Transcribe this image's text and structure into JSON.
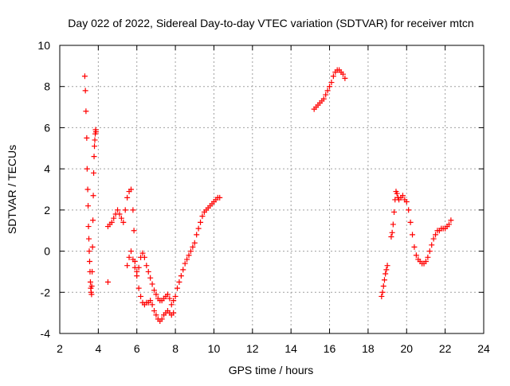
{
  "chart_data": {
    "type": "scatter",
    "title": "Day 022 of 2022, Sidereal Day-to-day VTEC variation (SDTVAR) for receiver mtcn",
    "xlabel": "GPS time / hours",
    "ylabel": "SDTVAR / TECUs",
    "xlim": [
      2,
      24
    ],
    "ylim": [
      -4,
      10
    ],
    "x_ticks": [
      2,
      4,
      6,
      8,
      10,
      12,
      14,
      16,
      18,
      20,
      22,
      24
    ],
    "y_ticks": [
      -4,
      -2,
      0,
      2,
      4,
      6,
      8,
      10
    ],
    "grid": true,
    "marker": "plus",
    "color": "#ff0000",
    "segments": [
      {
        "name": "seg1",
        "x": [
          3.3,
          3.33,
          3.36,
          3.4,
          3.42,
          3.45,
          3.47,
          3.49,
          3.51,
          3.53,
          3.55,
          3.57,
          3.59,
          3.61,
          3.63,
          3.65
        ],
        "y": [
          8.5,
          7.8,
          6.8,
          5.5,
          4.0,
          3.0,
          2.2,
          1.2,
          0.6,
          0.0,
          -0.5,
          -1.0,
          -1.5,
          -1.8,
          -2.0,
          -2.1
        ]
      },
      {
        "name": "seg2",
        "x": [
          3.66,
          3.68,
          3.7,
          3.72,
          3.74,
          3.76,
          3.78,
          3.8,
          3.82,
          3.84,
          3.86,
          3.88
        ],
        "y": [
          -1.7,
          -1.0,
          0.2,
          1.5,
          2.7,
          3.8,
          4.6,
          5.1,
          5.4,
          5.7,
          5.9,
          5.8
        ]
      },
      {
        "name": "seg3",
        "x": [
          4.5,
          4.6,
          4.7,
          4.8,
          4.9,
          5.0,
          5.1,
          5.2,
          5.3,
          5.4,
          5.5,
          5.6,
          5.7,
          5.8,
          5.85
        ],
        "y": [
          1.2,
          1.3,
          1.4,
          1.6,
          1.8,
          2.0,
          1.8,
          1.6,
          1.4,
          2.0,
          2.6,
          2.9,
          3.0,
          2.0,
          1.0
        ]
      },
      {
        "name": "seg4",
        "x": [
          5.5,
          5.6,
          5.7,
          5.8,
          5.9,
          6.0,
          6.1,
          6.2,
          6.3,
          6.4,
          6.5,
          6.6,
          6.7,
          6.8,
          6.9,
          7.0,
          7.1,
          7.2,
          7.3,
          7.4,
          7.5,
          7.6,
          7.7,
          7.8,
          7.9,
          8.0,
          8.1,
          8.2,
          8.3,
          8.4,
          8.5,
          8.6,
          8.7,
          8.8,
          8.9,
          9.0,
          9.1,
          9.2,
          9.3,
          9.4,
          9.5,
          9.6,
          9.7,
          9.8,
          9.9,
          10.0,
          10.1,
          10.2,
          10.3
        ],
        "y": [
          -0.7,
          -0.3,
          0.0,
          -0.4,
          -0.8,
          -1.0,
          -0.8,
          -0.3,
          -0.1,
          -0.3,
          -0.7,
          -1.0,
          -1.3,
          -1.6,
          -1.9,
          -2.1,
          -2.3,
          -2.4,
          -2.4,
          -2.3,
          -2.2,
          -2.1,
          -2.3,
          -2.6,
          -2.4,
          -2.2,
          -1.8,
          -1.5,
          -1.2,
          -0.9,
          -0.6,
          -0.4,
          -0.2,
          0.0,
          0.2,
          0.4,
          0.8,
          1.1,
          1.4,
          1.7,
          1.9,
          2.0,
          2.1,
          2.2,
          2.3,
          2.4,
          2.5,
          2.6,
          2.6
        ]
      },
      {
        "name": "seg5",
        "x": [
          5.9,
          6.0,
          6.1,
          6.2,
          6.3,
          6.4,
          6.5,
          6.6,
          6.7,
          6.8,
          6.9,
          7.0,
          7.1,
          7.2,
          7.3,
          7.4,
          7.5,
          7.6,
          7.7,
          7.8,
          7.9
        ],
        "y": [
          -0.5,
          -1.2,
          -1.8,
          -2.2,
          -2.5,
          -2.6,
          -2.5,
          -2.5,
          -2.4,
          -2.6,
          -2.9,
          -3.1,
          -3.3,
          -3.4,
          -3.3,
          -3.1,
          -3.0,
          -2.9,
          -3.0,
          -3.1,
          -3.0
        ]
      },
      {
        "name": "seg6",
        "x": [
          15.2,
          15.3,
          15.4,
          15.5,
          15.6,
          15.7,
          15.8,
          15.9,
          16.0,
          16.1,
          16.2,
          16.3,
          16.4,
          16.5,
          16.6,
          16.7,
          16.8
        ],
        "y": [
          6.9,
          7.0,
          7.1,
          7.2,
          7.3,
          7.4,
          7.6,
          7.8,
          8.0,
          8.2,
          8.5,
          8.7,
          8.8,
          8.8,
          8.7,
          8.6,
          8.4
        ]
      },
      {
        "name": "seg7",
        "x": [
          18.7,
          18.75,
          18.8,
          18.85,
          18.9,
          18.95,
          19.0
        ],
        "y": [
          -2.2,
          -2.0,
          -1.7,
          -1.4,
          -1.1,
          -0.9,
          -0.7
        ]
      },
      {
        "name": "seg8",
        "x": [
          19.2,
          19.25,
          19.3,
          19.35,
          19.4,
          19.45,
          19.5,
          19.55,
          19.6,
          19.7,
          19.8,
          19.9,
          20.0,
          20.1,
          20.2,
          20.3,
          20.4,
          20.5,
          20.6,
          20.7,
          20.8,
          20.9,
          21.0,
          21.1,
          21.2,
          21.3,
          21.4,
          21.5,
          21.6,
          21.7,
          21.8,
          21.9,
          22.0,
          22.1,
          22.2,
          22.3
        ],
        "y": [
          0.7,
          0.9,
          1.3,
          1.9,
          2.5,
          2.9,
          2.8,
          2.6,
          2.5,
          2.6,
          2.7,
          2.5,
          2.4,
          2.0,
          1.4,
          0.8,
          0.2,
          -0.2,
          -0.4,
          -0.5,
          -0.6,
          -0.6,
          -0.5,
          -0.3,
          0.0,
          0.3,
          0.6,
          0.8,
          1.0,
          1.0,
          1.1,
          1.1,
          1.1,
          1.2,
          1.3,
          1.5
        ]
      },
      {
        "name": "outlier",
        "x": [
          4.5
        ],
        "y": [
          -1.5
        ]
      }
    ]
  }
}
